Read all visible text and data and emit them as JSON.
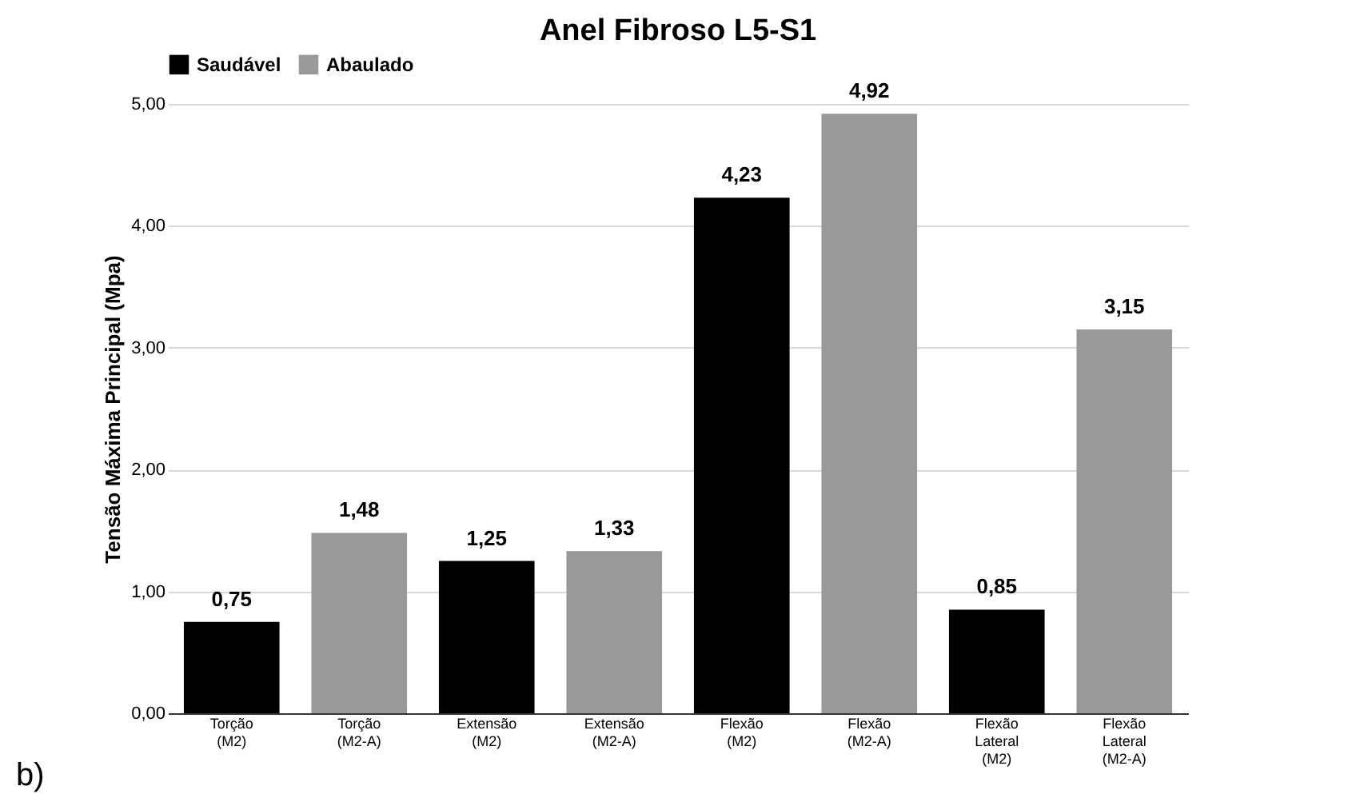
{
  "chart_data": {
    "type": "bar",
    "title": "Anel Fibroso L5-S1",
    "ylabel": "Tensão Máxima Principal (Mpa)",
    "categories": [
      "Torção (M2)",
      "Torção (M2-A)",
      "Extensão (M2)",
      "Extensão (M2-A)",
      "Flexão (M2)",
      "Flexão (M2-A)",
      "Flexão Lateral (M2)",
      "Flexão Lateral (M2-A)"
    ],
    "series": [
      {
        "name": "Saudável",
        "color": "#000000",
        "values": [
          0.75,
          null,
          1.25,
          null,
          4.23,
          null,
          0.85,
          null
        ],
        "value_labels": [
          "0,75",
          null,
          "1,25",
          null,
          "4,23",
          null,
          "0,85",
          null
        ]
      },
      {
        "name": "Abaulado",
        "color": "#999999",
        "values": [
          null,
          1.48,
          null,
          1.33,
          null,
          4.92,
          null,
          3.15
        ],
        "value_labels": [
          null,
          "1,48",
          null,
          "1,33",
          null,
          "4,92",
          null,
          "3,15"
        ]
      }
    ],
    "ylim": [
      0,
      5
    ],
    "yticks": [
      {
        "value": 0,
        "label": "0,00"
      },
      {
        "value": 1,
        "label": "1,00"
      },
      {
        "value": 2,
        "label": "2,00"
      },
      {
        "value": 3,
        "label": "3,00"
      },
      {
        "value": 4,
        "label": "4,00"
      },
      {
        "value": 5,
        "label": "5,00"
      }
    ],
    "grid": "y",
    "legend": "top",
    "annotations": [
      "b)"
    ]
  }
}
